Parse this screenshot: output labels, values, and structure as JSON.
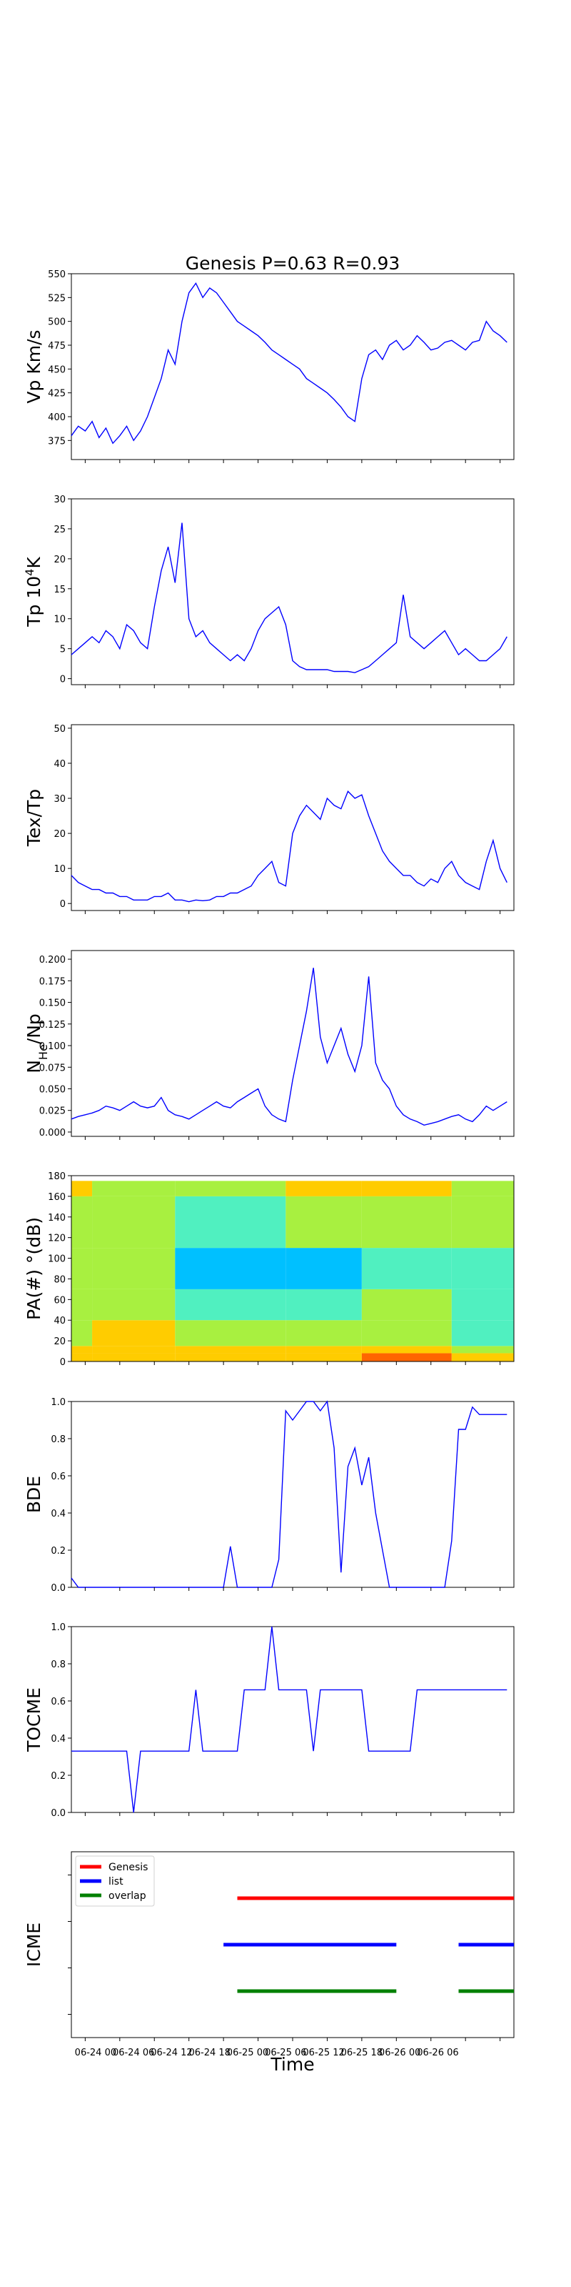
{
  "figure": {
    "title": "Genesis P=0.63 R=0.93",
    "xlabel": "Time",
    "x_ticks": [
      "06-24 00",
      "06-24 06",
      "06-24 12",
      "06-24 18",
      "06-25 00",
      "06-25 06",
      "06-25 12",
      "06-25 18",
      "06-26 00",
      "06-26 06"
    ]
  },
  "chart_data": [
    {
      "type": "line",
      "ylabel": "Vp Km/s",
      "ylim": [
        355,
        550
      ],
      "yticks": [
        375,
        400,
        425,
        450,
        475,
        500,
        525,
        550
      ],
      "series": [
        {
          "color": "#0000ff",
          "x": [
            0,
            1,
            2,
            3,
            4,
            5,
            6,
            7,
            8,
            9,
            10,
            11,
            12,
            13,
            14,
            15,
            16,
            17,
            18,
            19,
            20,
            21,
            22,
            23,
            24,
            25,
            26,
            27,
            28,
            29,
            30,
            31,
            32,
            33,
            34,
            35,
            36,
            37,
            38,
            39,
            40,
            41,
            42,
            43,
            44,
            45,
            46,
            47,
            48,
            49,
            50,
            51,
            52,
            53,
            54,
            55,
            56,
            57,
            58,
            59,
            60,
            61,
            62,
            63
          ],
          "y": [
            380,
            390,
            385,
            395,
            378,
            388,
            372,
            380,
            390,
            375,
            385,
            400,
            420,
            440,
            470,
            455,
            500,
            530,
            540,
            525,
            535,
            530,
            520,
            510,
            500,
            495,
            490,
            485,
            478,
            470,
            465,
            460,
            455,
            450,
            440,
            435,
            430,
            425,
            418,
            410,
            400,
            395,
            440,
            465,
            470,
            460,
            475,
            480,
            470,
            475,
            485,
            478,
            470,
            472,
            478,
            480,
            475,
            470,
            478,
            480,
            500,
            490,
            485,
            478
          ]
        }
      ]
    },
    {
      "type": "line",
      "ylabel": "Tp 10^4K",
      "ylim": [
        -1,
        30
      ],
      "yticks": [
        0,
        5,
        10,
        15,
        20,
        25,
        30
      ],
      "series": [
        {
          "color": "#0000ff",
          "x": [
            0,
            1,
            2,
            3,
            4,
            5,
            6,
            7,
            8,
            9,
            10,
            11,
            12,
            13,
            14,
            15,
            16,
            17,
            18,
            19,
            20,
            21,
            22,
            23,
            24,
            25,
            26,
            27,
            28,
            29,
            30,
            31,
            32,
            33,
            34,
            35,
            36,
            37,
            38,
            39,
            40,
            41,
            42,
            43,
            44,
            45,
            46,
            47,
            48,
            49,
            50,
            51,
            52,
            53,
            54,
            55,
            56,
            57,
            58,
            59,
            60,
            61,
            62,
            63
          ],
          "y": [
            4,
            5,
            6,
            7,
            6,
            8,
            7,
            5,
            9,
            8,
            6,
            5,
            12,
            18,
            22,
            16,
            26,
            10,
            7,
            8,
            6,
            5,
            4,
            3,
            4,
            3,
            5,
            8,
            10,
            11,
            12,
            9,
            3,
            2,
            1.5,
            1.5,
            1.5,
            1.5,
            1.2,
            1.2,
            1.2,
            1.0,
            1.5,
            2,
            3,
            4,
            5,
            6,
            14,
            7,
            6,
            5,
            6,
            7,
            8,
            6,
            4,
            5,
            4,
            3,
            3,
            4,
            5,
            7
          ]
        }
      ]
    },
    {
      "type": "line",
      "ylabel": "Tex/Tp",
      "ylim": [
        -2,
        51
      ],
      "yticks": [
        0,
        10,
        20,
        30,
        40,
        50
      ],
      "series": [
        {
          "color": "#0000ff",
          "x": [
            0,
            1,
            2,
            3,
            4,
            5,
            6,
            7,
            8,
            9,
            10,
            11,
            12,
            13,
            14,
            15,
            16,
            17,
            18,
            19,
            20,
            21,
            22,
            23,
            24,
            25,
            26,
            27,
            28,
            29,
            30,
            31,
            32,
            33,
            34,
            35,
            36,
            37,
            38,
            39,
            40,
            41,
            42,
            43,
            44,
            45,
            46,
            47,
            48,
            49,
            50,
            51,
            52,
            53,
            54,
            55,
            56,
            57,
            58,
            59,
            60,
            61,
            62,
            63
          ],
          "y": [
            8,
            6,
            5,
            4,
            4,
            3,
            3,
            2,
            2,
            1,
            1,
            1,
            2,
            2,
            3,
            1,
            1,
            0.5,
            1,
            0.8,
            1,
            2,
            2,
            3,
            3,
            4,
            5,
            8,
            10,
            12,
            6,
            5,
            20,
            25,
            28,
            26,
            24,
            30,
            28,
            27,
            32,
            30,
            31,
            25,
            20,
            15,
            12,
            10,
            8,
            8,
            6,
            5,
            7,
            6,
            10,
            12,
            8,
            6,
            5,
            4,
            12,
            18,
            10,
            6
          ]
        }
      ]
    },
    {
      "type": "line",
      "ylabel": "N_He/Np",
      "ylim": [
        -0.005,
        0.21
      ],
      "yticks": [
        0.0,
        0.025,
        0.05,
        0.075,
        0.1,
        0.125,
        0.15,
        0.175,
        0.2
      ],
      "series": [
        {
          "color": "#0000ff",
          "x": [
            0,
            1,
            2,
            3,
            4,
            5,
            6,
            7,
            8,
            9,
            10,
            11,
            12,
            13,
            14,
            15,
            16,
            17,
            18,
            19,
            20,
            21,
            22,
            23,
            24,
            25,
            26,
            27,
            28,
            29,
            30,
            31,
            32,
            33,
            34,
            35,
            36,
            37,
            38,
            39,
            40,
            41,
            42,
            43,
            44,
            45,
            46,
            47,
            48,
            49,
            50,
            51,
            52,
            53,
            54,
            55,
            56,
            57,
            58,
            59,
            60,
            61,
            62,
            63
          ],
          "y": [
            0.015,
            0.018,
            0.02,
            0.022,
            0.025,
            0.03,
            0.028,
            0.025,
            0.03,
            0.035,
            0.03,
            0.028,
            0.03,
            0.04,
            0.025,
            0.02,
            0.018,
            0.015,
            0.02,
            0.025,
            0.03,
            0.035,
            0.03,
            0.028,
            0.035,
            0.04,
            0.045,
            0.05,
            0.03,
            0.02,
            0.015,
            0.012,
            0.06,
            0.1,
            0.14,
            0.19,
            0.11,
            0.08,
            0.1,
            0.12,
            0.09,
            0.07,
            0.1,
            0.18,
            0.08,
            0.06,
            0.05,
            0.03,
            0.02,
            0.015,
            0.012,
            0.008,
            0.01,
            0.012,
            0.015,
            0.018,
            0.02,
            0.015,
            0.012,
            0.02,
            0.03,
            0.025,
            0.03,
            0.035
          ]
        }
      ]
    },
    {
      "type": "heatmap",
      "ylabel": "PA(#) °(dB)",
      "ylim": [
        0,
        180
      ],
      "yticks": [
        0,
        20,
        40,
        60,
        80,
        100,
        120,
        140,
        160,
        180
      ]
    },
    {
      "type": "line",
      "ylabel": "BDE",
      "ylim": [
        0,
        1
      ],
      "yticks": [
        0.0,
        0.2,
        0.4,
        0.6,
        0.8,
        1.0
      ],
      "series": [
        {
          "color": "#0000ff",
          "x": [
            0,
            1,
            2,
            3,
            4,
            5,
            6,
            7,
            8,
            9,
            10,
            11,
            12,
            13,
            14,
            15,
            16,
            17,
            18,
            19,
            20,
            21,
            22,
            23,
            24,
            25,
            26,
            27,
            28,
            29,
            30,
            31,
            32,
            33,
            34,
            35,
            36,
            37,
            38,
            39,
            40,
            41,
            42,
            43,
            44,
            45,
            46,
            47,
            48,
            49,
            50,
            51,
            52,
            53,
            54,
            55,
            56,
            57,
            58,
            59,
            60,
            61,
            62,
            63
          ],
          "y": [
            0.05,
            0,
            0,
            0,
            0,
            0,
            0,
            0,
            0,
            0,
            0,
            0,
            0,
            0,
            0,
            0,
            0,
            0,
            0,
            0,
            0,
            0,
            0,
            0.22,
            0,
            0,
            0,
            0,
            0,
            0,
            0.15,
            0.95,
            0.9,
            0.95,
            1.0,
            1.0,
            0.95,
            1.0,
            0.75,
            0.08,
            0.65,
            0.75,
            0.55,
            0.7,
            0.4,
            0.2,
            0,
            0,
            0,
            0,
            0,
            0,
            0,
            0,
            0,
            0.25,
            0.85,
            0.85,
            0.97,
            0.93,
            0.93,
            0.93,
            0.93,
            0.93
          ]
        }
      ]
    },
    {
      "type": "line",
      "ylabel": "TOCME",
      "ylim": [
        0,
        1
      ],
      "yticks": [
        0.0,
        0.2,
        0.4,
        0.6,
        0.8,
        1.0
      ],
      "series": [
        {
          "color": "#0000ff",
          "x": [
            0,
            1,
            2,
            3,
            4,
            5,
            6,
            7,
            8,
            9,
            10,
            11,
            12,
            13,
            14,
            15,
            16,
            17,
            18,
            19,
            20,
            21,
            22,
            23,
            24,
            25,
            26,
            27,
            28,
            29,
            30,
            31,
            32,
            33,
            34,
            35,
            36,
            37,
            38,
            39,
            40,
            41,
            42,
            43,
            44,
            45,
            46,
            47,
            48,
            49,
            50,
            51,
            52,
            53,
            54,
            55,
            56,
            57,
            58,
            59,
            60,
            61,
            62,
            63
          ],
          "y": [
            0.33,
            0.33,
            0.33,
            0.33,
            0.33,
            0.33,
            0.33,
            0.33,
            0.33,
            0,
            0.33,
            0.33,
            0.33,
            0.33,
            0.33,
            0.33,
            0.33,
            0.33,
            0.66,
            0.33,
            0.33,
            0.33,
            0.33,
            0.33,
            0.33,
            0.66,
            0.66,
            0.66,
            0.66,
            1.0,
            0.66,
            0.66,
            0.66,
            0.66,
            0.66,
            0.33,
            0.66,
            0.66,
            0.66,
            0.66,
            0.66,
            0.66,
            0.66,
            0.33,
            0.33,
            0.33,
            0.33,
            0.33,
            0.33,
            0.33,
            0.66,
            0.66,
            0.66,
            0.66,
            0.66,
            0.66,
            0.66,
            0.66,
            0.66,
            0.66,
            0.66,
            0.66,
            0.66,
            0.66
          ]
        }
      ]
    },
    {
      "type": "line",
      "ylabel": "ICME",
      "legend": [
        "Genesis",
        "list",
        "overlap"
      ],
      "legend_placement": "top-left",
      "series": [
        {
          "name": "Genesis",
          "color": "#ff0000",
          "level": 3,
          "segments": [
            [
              24,
              64
            ]
          ]
        },
        {
          "name": "list",
          "color": "#0000ff",
          "level": 2,
          "segments": [
            [
              22,
              47
            ],
            [
              56,
              64
            ]
          ]
        },
        {
          "name": "overlap",
          "color": "#008000",
          "level": 1,
          "segments": [
            [
              24,
              47
            ],
            [
              56,
              64
            ]
          ]
        }
      ]
    }
  ]
}
